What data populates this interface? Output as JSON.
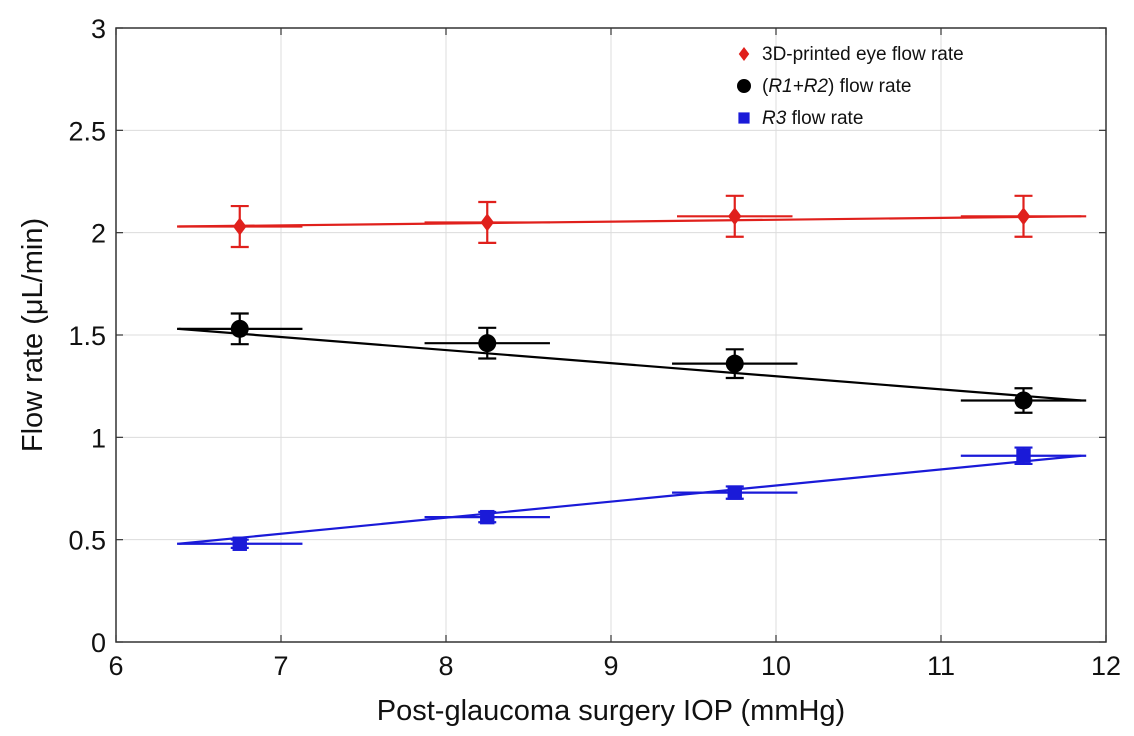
{
  "chart_data": {
    "type": "scatter",
    "xlabel": "Post-glaucoma surgery IOP (mmHg)",
    "ylabel": "Flow rate (μL/min)",
    "xlim": [
      6,
      12
    ],
    "ylim": [
      0,
      3
    ],
    "xticks": [
      6,
      7,
      8,
      9,
      10,
      11,
      12
    ],
    "yticks": [
      0,
      0.5,
      1,
      1.5,
      2,
      2.5,
      3
    ],
    "xtick_labels": [
      "6",
      "7",
      "8",
      "9",
      "10",
      "11",
      "12"
    ],
    "ytick_labels": [
      "0",
      "0.5",
      "1",
      "1.5",
      "2",
      "2.5",
      "3"
    ],
    "grid": true,
    "legend_position": "top-right",
    "series": [
      {
        "name": "3D-printed eye flow rate",
        "legend_parts": [
          {
            "text": "3D-printed eye flow rate",
            "italic": false
          }
        ],
        "color": "#e0201c",
        "marker": "diamond",
        "x": [
          6.75,
          8.25,
          9.75,
          11.5
        ],
        "y": [
          2.03,
          2.05,
          2.08,
          2.08
        ],
        "y_err": [
          0.1,
          0.1,
          0.1,
          0.1
        ],
        "x_err": [
          0.38,
          0.38,
          0.35,
          0.38
        ],
        "fit_line": {
          "x": [
            6.38,
            11.85
          ],
          "y": [
            2.03,
            2.08
          ]
        }
      },
      {
        "name": "(R1+R2) flow rate",
        "legend_parts": [
          {
            "text": "(",
            "italic": false
          },
          {
            "text": "R1+R2",
            "italic": true
          },
          {
            "text": ") flow rate",
            "italic": false
          }
        ],
        "color": "#000000",
        "marker": "circle",
        "x": [
          6.75,
          8.25,
          9.75,
          11.5
        ],
        "y": [
          1.53,
          1.46,
          1.36,
          1.18
        ],
        "y_err": [
          0.075,
          0.075,
          0.07,
          0.06
        ],
        "x_err": [
          0.38,
          0.38,
          0.38,
          0.38
        ],
        "fit_line": {
          "x": [
            6.38,
            11.85
          ],
          "y": [
            1.53,
            1.18
          ]
        }
      },
      {
        "name": "R3 flow rate",
        "legend_parts": [
          {
            "text": "R3",
            "italic": true
          },
          {
            "text": " flow rate",
            "italic": false
          }
        ],
        "color": "#1a1ad8",
        "marker": "square",
        "x": [
          6.75,
          8.25,
          9.75,
          11.5
        ],
        "y": [
          0.48,
          0.61,
          0.73,
          0.91
        ],
        "y_err": [
          0.02,
          0.025,
          0.03,
          0.04
        ],
        "x_err": [
          0.38,
          0.38,
          0.38,
          0.38
        ],
        "fit_line": {
          "x": [
            6.38,
            11.85
          ],
          "y": [
            0.48,
            0.91
          ]
        }
      }
    ]
  }
}
